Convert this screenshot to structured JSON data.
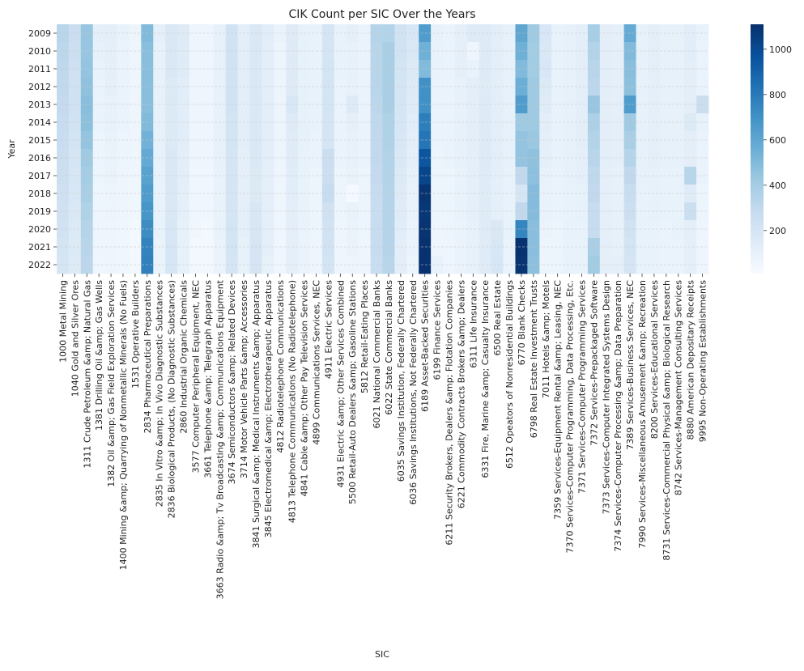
{
  "chart_data": {
    "type": "heatmap",
    "title": "CIK Count per SIC Over the Years",
    "xlabel": "SIC",
    "ylabel": "Year",
    "colormap": [
      "#f7fbff",
      "#deebf7",
      "#c6dbef",
      "#9ecae1",
      "#6baed6",
      "#4292c6",
      "#2171b5",
      "#08519c",
      "#08306b"
    ],
    "color_range": [
      10,
      1110
    ],
    "colorbar_ticks": [
      200,
      400,
      600,
      800,
      1000
    ],
    "grid": "dashed horizontal lines",
    "years": [
      "2009",
      "2010",
      "2011",
      "2012",
      "2013",
      "2014",
      "2015",
      "2016",
      "2017",
      "2018",
      "2019",
      "2020",
      "2021",
      "2022"
    ],
    "sic_labels": [
      "1000 Metal Mining",
      "1040 Gold and Silver Ores",
      "1311 Crude Petroleum &amp; Natural Gas",
      "1381 Drilling Oil &amp; Gas Wells",
      "1382 Oil &amp; Gas Field Exploration Services",
      "1400 Mining &amp; Quarrying of  Nonmetallic Minerals (No Fuels)",
      "1531 Operative Builders",
      "2834 Pharmaceutical Preparations",
      "2835 In Vitro &amp; In Vivo Diagnostic Substances",
      "2836 Biological Products, (No Diagnostic Substances)",
      "2860 Industrial Organic Chemicals",
      "3577 Computer Peripheral Equipment, NEC",
      "3661 Telephone &amp; Telegraph Apparatus",
      "3663 Radio &amp; Tv Broadcasting &amp; Communications Equipment",
      "3674 Semiconductors &amp; Related Devices",
      "3714 Motor Vehicle Parts &amp; Accessories",
      "3841 Surgical &amp; Medical Instruments &amp; Apparatus",
      "3845 Electromedical &amp; Electrotherapeutic Apparatus",
      "4812 Radiotelephone Communications",
      "4813 Telephone Communications (No Radiotelephone)",
      "4841 Cable &amp; Other Pay Television Services",
      "4899 Communications Services, NEC",
      "4911 Electric Services",
      "4931 Electric &amp; Other Services Combined",
      "5500 Retail-Auto Dealers &amp; Gasoline Stations",
      "5812 Retail-Eating Places",
      "6021 National Commercial Banks",
      "6022 State Commercial Banks",
      "6035 Savings Institution, Federally Chartered",
      "6036 Savings Institutions, Not Federally Chartered",
      "6189 Asset-Backed Securities",
      "6199 Finance Services",
      "6211 Security Brokers, Dealers &amp; Flotation Companies",
      "6221 Commodity Contracts Brokers &amp; Dealers",
      "6311 Life Insurance",
      "6331 Fire, Marine &amp; Casualty Insurance",
      "6500 Real Estate",
      "6512 Opeators of  Nonresidential Buildings",
      "6770 Blank Checks",
      "6798 Real Estate Investment Trusts",
      "7011 Hotels &amp; Motels",
      "7359 Services-Equipment Rental &amp; Leasing, NEC",
      "7370 Services-Computer Programming, Data Processing, Etc.",
      "7371 Services-Computer Programming Services",
      "7372 Services-Prepackaged Software",
      "7373 Services-Computer Integrated Systems Design",
      "7374 Services-Computer Processing &amp; Data Preparation",
      "7389 Services-Business Services, NEC",
      "7990 Services-Miscellaneous Amusement &amp; Recreation",
      "8200 Services-Educational Services",
      "8731 Services-Commercial Physical &amp; Biological Research",
      "8742 Services-Management Consulting Services",
      "8880 American Depositary Receipts",
      "9995 Non-Operating Establishments"
    ],
    "values": [
      [
        330,
        260,
        440,
        110,
        120,
        90,
        70,
        500,
        110,
        170,
        150,
        60,
        60,
        100,
        220,
        120,
        170,
        130,
        80,
        150,
        100,
        90,
        200,
        90,
        110,
        80,
        340,
        350,
        220,
        180,
        650,
        100,
        80,
        110,
        150,
        150,
        120,
        100,
        600,
        420,
        180,
        90,
        100,
        120,
        390,
        120,
        110,
        580,
        100,
        120,
        100,
        100,
        130,
        90
      ],
      [
        320,
        250,
        440,
        100,
        110,
        80,
        60,
        480,
        100,
        170,
        140,
        60,
        60,
        100,
        220,
        120,
        170,
        120,
        70,
        150,
        100,
        90,
        200,
        90,
        100,
        80,
        330,
        380,
        220,
        170,
        550,
        90,
        80,
        110,
        60,
        150,
        120,
        100,
        550,
        410,
        170,
        90,
        100,
        120,
        350,
        120,
        110,
        500,
        100,
        120,
        100,
        100,
        130,
        80
      ],
      [
        310,
        240,
        450,
        90,
        110,
        80,
        60,
        480,
        100,
        170,
        140,
        60,
        60,
        100,
        220,
        120,
        170,
        120,
        70,
        150,
        100,
        90,
        210,
        90,
        100,
        80,
        330,
        380,
        210,
        160,
        500,
        90,
        80,
        110,
        90,
        150,
        120,
        100,
        500,
        410,
        180,
        90,
        100,
        120,
        330,
        120,
        110,
        480,
        100,
        120,
        100,
        100,
        120,
        80
      ],
      [
        300,
        230,
        460,
        80,
        110,
        80,
        60,
        480,
        100,
        160,
        130,
        60,
        60,
        100,
        220,
        120,
        170,
        120,
        70,
        150,
        100,
        90,
        210,
        80,
        100,
        80,
        330,
        380,
        200,
        150,
        700,
        80,
        80,
        100,
        120,
        140,
        120,
        100,
        560,
        420,
        160,
        90,
        100,
        120,
        320,
        120,
        110,
        470,
        100,
        110,
        100,
        100,
        120,
        80
      ],
      [
        290,
        230,
        480,
        80,
        100,
        80,
        60,
        480,
        100,
        160,
        130,
        60,
        60,
        100,
        220,
        120,
        170,
        120,
        70,
        180,
        100,
        90,
        210,
        80,
        150,
        80,
        320,
        380,
        200,
        140,
        700,
        80,
        80,
        100,
        120,
        150,
        120,
        100,
        650,
        420,
        140,
        90,
        100,
        120,
        440,
        120,
        110,
        650,
        100,
        110,
        100,
        100,
        120,
        260
      ],
      [
        280,
        220,
        470,
        80,
        100,
        80,
        60,
        500,
        100,
        160,
        130,
        60,
        60,
        100,
        210,
        120,
        170,
        120,
        70,
        150,
        100,
        90,
        200,
        80,
        110,
        80,
        310,
        360,
        190,
        130,
        780,
        80,
        80,
        100,
        120,
        150,
        120,
        100,
        420,
        420,
        120,
        90,
        100,
        120,
        370,
        120,
        110,
        420,
        100,
        110,
        100,
        100,
        160,
        100
      ],
      [
        270,
        210,
        450,
        70,
        90,
        70,
        60,
        540,
        100,
        160,
        130,
        60,
        60,
        100,
        210,
        120,
        170,
        120,
        70,
        140,
        100,
        80,
        200,
        80,
        100,
        80,
        300,
        360,
        180,
        120,
        820,
        80,
        80,
        100,
        120,
        150,
        120,
        100,
        450,
        430,
        110,
        90,
        100,
        120,
        350,
        120,
        110,
        380,
        100,
        110,
        100,
        100,
        120,
        80
      ],
      [
        260,
        200,
        420,
        70,
        80,
        70,
        60,
        580,
        100,
        170,
        120,
        60,
        60,
        100,
        200,
        110,
        170,
        120,
        70,
        140,
        90,
        80,
        260,
        80,
        100,
        80,
        300,
        350,
        170,
        110,
        950,
        70,
        80,
        100,
        110,
        150,
        120,
        100,
        450,
        460,
        110,
        90,
        100,
        110,
        330,
        120,
        110,
        340,
        100,
        110,
        100,
        100,
        120,
        80
      ],
      [
        250,
        190,
        400,
        70,
        80,
        60,
        50,
        620,
        90,
        170,
        120,
        50,
        50,
        90,
        200,
        110,
        160,
        110,
        60,
        130,
        90,
        70,
        250,
        70,
        90,
        70,
        290,
        350,
        160,
        100,
        1020,
        70,
        70,
        90,
        110,
        140,
        110,
        90,
        300,
        470,
        100,
        80,
        100,
        110,
        310,
        110,
        100,
        300,
        100,
        100,
        90,
        90,
        330,
        80
      ],
      [
        240,
        180,
        380,
        60,
        70,
        60,
        50,
        650,
        90,
        170,
        110,
        50,
        50,
        90,
        200,
        110,
        160,
        110,
        60,
        130,
        90,
        70,
        280,
        70,
        30,
        70,
        280,
        340,
        150,
        90,
        1090,
        70,
        70,
        90,
        110,
        140,
        110,
        90,
        200,
        490,
        90,
        80,
        90,
        100,
        300,
        110,
        100,
        270,
        90,
        100,
        90,
        90,
        140,
        70
      ],
      [
        230,
        170,
        360,
        60,
        70,
        60,
        50,
        680,
        90,
        170,
        110,
        50,
        50,
        90,
        200,
        110,
        180,
        110,
        60,
        120,
        90,
        70,
        230,
        70,
        90,
        70,
        270,
        340,
        140,
        90,
        1080,
        70,
        70,
        90,
        110,
        140,
        110,
        90,
        300,
        490,
        90,
        80,
        90,
        100,
        280,
        110,
        100,
        250,
        90,
        100,
        90,
        90,
        250,
        70
      ],
      [
        220,
        160,
        340,
        60,
        60,
        50,
        40,
        720,
        90,
        180,
        100,
        50,
        40,
        90,
        210,
        110,
        190,
        110,
        60,
        120,
        80,
        70,
        220,
        60,
        80,
        70,
        280,
        340,
        130,
        80,
        1090,
        60,
        70,
        80,
        100,
        140,
        170,
        90,
        750,
        480,
        80,
        70,
        90,
        90,
        280,
        110,
        100,
        220,
        90,
        90,
        80,
        90,
        120,
        60
      ],
      [
        210,
        160,
        330,
        60,
        60,
        50,
        40,
        760,
        80,
        190,
        100,
        40,
        40,
        80,
        210,
        100,
        200,
        110,
        50,
        110,
        80,
        60,
        220,
        60,
        80,
        60,
        280,
        340,
        120,
        80,
        1100,
        60,
        60,
        80,
        100,
        140,
        180,
        80,
        1100,
        480,
        70,
        70,
        90,
        90,
        380,
        110,
        100,
        210,
        90,
        90,
        80,
        80,
        110,
        60
      ],
      [
        200,
        150,
        320,
        50,
        60,
        50,
        40,
        770,
        80,
        190,
        100,
        40,
        40,
        80,
        200,
        100,
        200,
        100,
        50,
        110,
        80,
        60,
        210,
        60,
        70,
        60,
        270,
        330,
        120,
        70,
        1100,
        90,
        60,
        80,
        100,
        140,
        190,
        80,
        1090,
        470,
        70,
        70,
        90,
        90,
        410,
        110,
        110,
        200,
        90,
        90,
        80,
        80,
        110,
        60
      ]
    ]
  }
}
